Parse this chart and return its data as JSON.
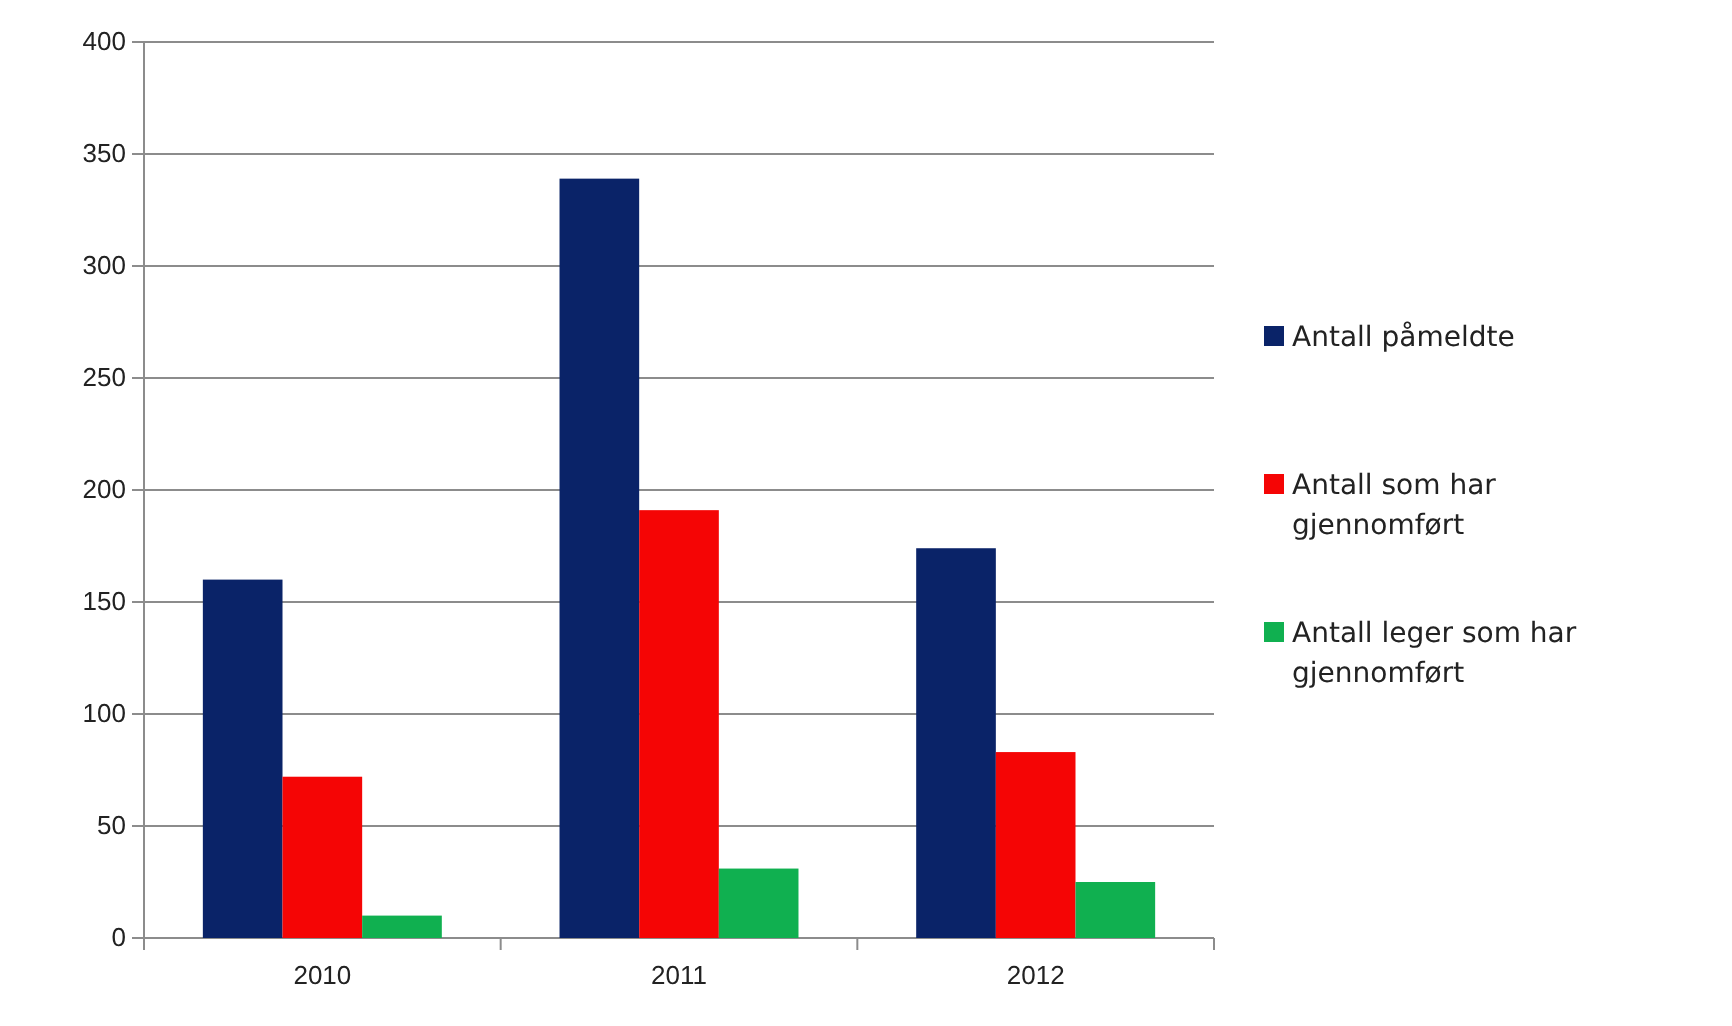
{
  "chart_data": {
    "type": "bar",
    "categories": [
      "2010",
      "2011",
      "2012"
    ],
    "series": [
      {
        "name": "Antall påmeldte",
        "color": "#0a2368",
        "values": [
          160,
          339,
          174
        ]
      },
      {
        "name": "Antall som har gjennomført",
        "color": "#f50505",
        "values": [
          72,
          191,
          83
        ]
      },
      {
        "name": "Antall leger som har gjennomført",
        "color": "#10b050",
        "values": [
          10,
          31,
          25
        ]
      }
    ],
    "ylim": [
      0,
      400
    ],
    "yticks": [
      0,
      50,
      100,
      150,
      200,
      250,
      300,
      350,
      400
    ],
    "grid": "y",
    "legend": "right"
  }
}
